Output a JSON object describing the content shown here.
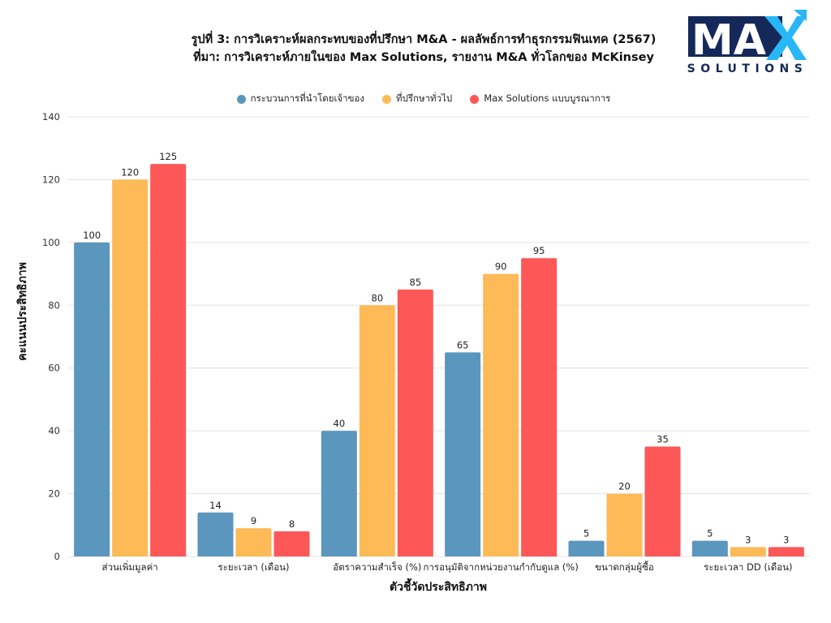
{
  "chart_data": {
    "type": "bar",
    "title": "รูปที่ 3: การวิเคราะห์ผลกระทบของที่ปรึกษา M&A - ผลลัพธ์การทำธุรกรรมฟินเทค (2567)",
    "subtitle": "ที่มา: การวิเคราะห์ภายในของ Max Solutions, รายงาน M&A ทั่วโลกของ McKinsey",
    "xlabel": "ตัวชี้วัดประสิทธิภาพ",
    "ylabel": "คะแนนประสิทธิภาพ",
    "ylim": [
      0,
      140
    ],
    "yticks": [
      0,
      20,
      40,
      60,
      80,
      100,
      120,
      140
    ],
    "grid": true,
    "legend_position": "top-center",
    "categories": [
      "ส่วนเพิ่มมูลค่า",
      "ระยะเวลา (เดือน)",
      "อัตราความสำเร็จ (%)",
      "การอนุมัติจากหน่วยงานกำกับดูแล (%)",
      "ขนาดกลุ่มผู้ซื้อ",
      "ระยะเวลา DD (เดือน)"
    ],
    "series": [
      {
        "name": "กระบวนการที่นำโดยเจ้าของ",
        "color": "#5a96bd",
        "values": [
          100,
          14,
          40,
          65,
          5,
          5
        ]
      },
      {
        "name": "ที่ปรึกษาทั่วไป",
        "color": "#fdba57",
        "values": [
          120,
          9,
          80,
          90,
          20,
          3
        ]
      },
      {
        "name": "Max Solutions แบบบูรณาการ",
        "color": "#fe5757",
        "values": [
          125,
          8,
          85,
          95,
          35,
          3
        ]
      }
    ]
  },
  "logo": {
    "main": "MAX",
    "sub": "SOLUTIONS",
    "colors": {
      "navy": "#14295a",
      "accent": "#29b6f6"
    }
  }
}
